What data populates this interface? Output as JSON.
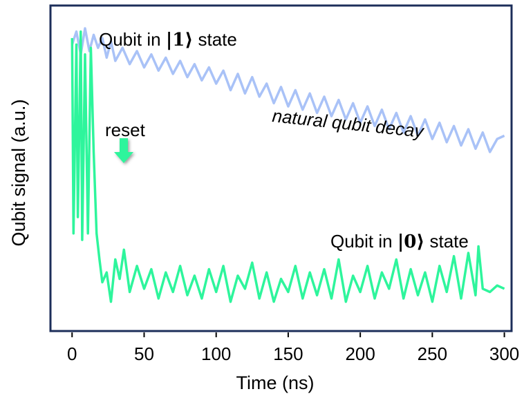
{
  "chart_data": {
    "type": "line",
    "xlabel": "Time (ns)",
    "ylabel": "Qubit signal (a.u.)",
    "xlim": [
      -15,
      305
    ],
    "ylim": [
      0,
      1
    ],
    "xticks": [
      0,
      50,
      100,
      150,
      200,
      250,
      300
    ],
    "grid": false,
    "legend": "none",
    "series": [
      {
        "name": "Qubit in |1⟩ state",
        "color": "#a9c2f7",
        "points": [
          [
            0,
            0.88
          ],
          [
            3,
            0.92
          ],
          [
            6,
            0.85
          ],
          [
            9,
            0.93
          ],
          [
            12,
            0.86
          ],
          [
            15,
            0.91
          ],
          [
            18,
            0.87
          ],
          [
            21,
            0.9
          ],
          [
            24,
            0.84
          ],
          [
            27,
            0.89
          ],
          [
            30,
            0.83
          ],
          [
            35,
            0.87
          ],
          [
            40,
            0.82
          ],
          [
            45,
            0.86
          ],
          [
            50,
            0.81
          ],
          [
            55,
            0.85
          ],
          [
            60,
            0.8
          ],
          [
            65,
            0.84
          ],
          [
            70,
            0.79
          ],
          [
            75,
            0.83
          ],
          [
            80,
            0.78
          ],
          [
            85,
            0.82
          ],
          [
            90,
            0.77
          ],
          [
            95,
            0.81
          ],
          [
            100,
            0.76
          ],
          [
            105,
            0.8
          ],
          [
            110,
            0.74
          ],
          [
            115,
            0.79
          ],
          [
            120,
            0.73
          ],
          [
            125,
            0.78
          ],
          [
            130,
            0.72
          ],
          [
            135,
            0.76
          ],
          [
            140,
            0.7
          ],
          [
            145,
            0.75
          ],
          [
            150,
            0.69
          ],
          [
            155,
            0.74
          ],
          [
            160,
            0.68
          ],
          [
            165,
            0.73
          ],
          [
            170,
            0.67
          ],
          [
            175,
            0.72
          ],
          [
            180,
            0.66
          ],
          [
            185,
            0.71
          ],
          [
            190,
            0.65
          ],
          [
            195,
            0.7
          ],
          [
            200,
            0.64
          ],
          [
            205,
            0.69
          ],
          [
            210,
            0.63
          ],
          [
            215,
            0.68
          ],
          [
            220,
            0.62
          ],
          [
            225,
            0.67
          ],
          [
            230,
            0.61
          ],
          [
            235,
            0.66
          ],
          [
            240,
            0.6
          ],
          [
            245,
            0.65
          ],
          [
            250,
            0.59
          ],
          [
            255,
            0.64
          ],
          [
            260,
            0.58
          ],
          [
            265,
            0.63
          ],
          [
            270,
            0.57
          ],
          [
            275,
            0.62
          ],
          [
            280,
            0.56
          ],
          [
            285,
            0.61
          ],
          [
            290,
            0.55
          ],
          [
            295,
            0.59
          ],
          [
            300,
            0.6
          ]
        ]
      },
      {
        "name": "Qubit in |0⟩ state",
        "color": "#2ef59c",
        "points": [
          [
            0,
            0.9
          ],
          [
            1,
            0.3
          ],
          [
            3,
            0.88
          ],
          [
            4,
            0.35
          ],
          [
            6,
            0.92
          ],
          [
            7,
            0.28
          ],
          [
            9,
            0.85
          ],
          [
            11,
            0.3
          ],
          [
            13,
            0.87
          ],
          [
            15,
            0.55
          ],
          [
            17,
            0.3
          ],
          [
            19,
            0.22
          ],
          [
            21,
            0.15
          ],
          [
            24,
            0.18
          ],
          [
            27,
            0.09
          ],
          [
            30,
            0.22
          ],
          [
            33,
            0.16
          ],
          [
            36,
            0.25
          ],
          [
            40,
            0.12
          ],
          [
            45,
            0.2
          ],
          [
            50,
            0.13
          ],
          [
            55,
            0.19
          ],
          [
            60,
            0.1
          ],
          [
            65,
            0.18
          ],
          [
            70,
            0.12
          ],
          [
            75,
            0.2
          ],
          [
            80,
            0.11
          ],
          [
            85,
            0.17
          ],
          [
            90,
            0.1
          ],
          [
            95,
            0.19
          ],
          [
            100,
            0.12
          ],
          [
            105,
            0.2
          ],
          [
            110,
            0.09
          ],
          [
            115,
            0.17
          ],
          [
            120,
            0.13
          ],
          [
            125,
            0.21
          ],
          [
            130,
            0.1
          ],
          [
            135,
            0.18
          ],
          [
            140,
            0.09
          ],
          [
            145,
            0.16
          ],
          [
            150,
            0.12
          ],
          [
            155,
            0.2
          ],
          [
            160,
            0.1
          ],
          [
            165,
            0.18
          ],
          [
            170,
            0.11
          ],
          [
            175,
            0.19
          ],
          [
            180,
            0.1
          ],
          [
            185,
            0.22
          ],
          [
            190,
            0.09
          ],
          [
            195,
            0.17
          ],
          [
            200,
            0.12
          ],
          [
            205,
            0.2
          ],
          [
            210,
            0.1
          ],
          [
            215,
            0.18
          ],
          [
            220,
            0.13
          ],
          [
            225,
            0.22
          ],
          [
            230,
            0.1
          ],
          [
            235,
            0.19
          ],
          [
            240,
            0.11
          ],
          [
            245,
            0.18
          ],
          [
            250,
            0.09
          ],
          [
            255,
            0.2
          ],
          [
            260,
            0.12
          ],
          [
            265,
            0.23
          ],
          [
            270,
            0.1
          ],
          [
            275,
            0.24
          ],
          [
            280,
            0.11
          ],
          [
            282,
            0.26
          ],
          [
            285,
            0.13
          ],
          [
            290,
            0.12
          ],
          [
            295,
            0.14
          ],
          [
            300,
            0.13
          ]
        ]
      }
    ],
    "annotations": {
      "state1_prefix": "Qubit in ",
      "state1_ket": "|1⟩",
      "state1_suffix": " state",
      "state0_prefix": "Qubit in ",
      "state0_ket": "|0⟩",
      "state0_suffix": " state",
      "decay_text": "natural qubit decay",
      "reset_text": "reset"
    },
    "frame_color": "#1c2e5a",
    "arrow_color": "#2ef59c"
  }
}
